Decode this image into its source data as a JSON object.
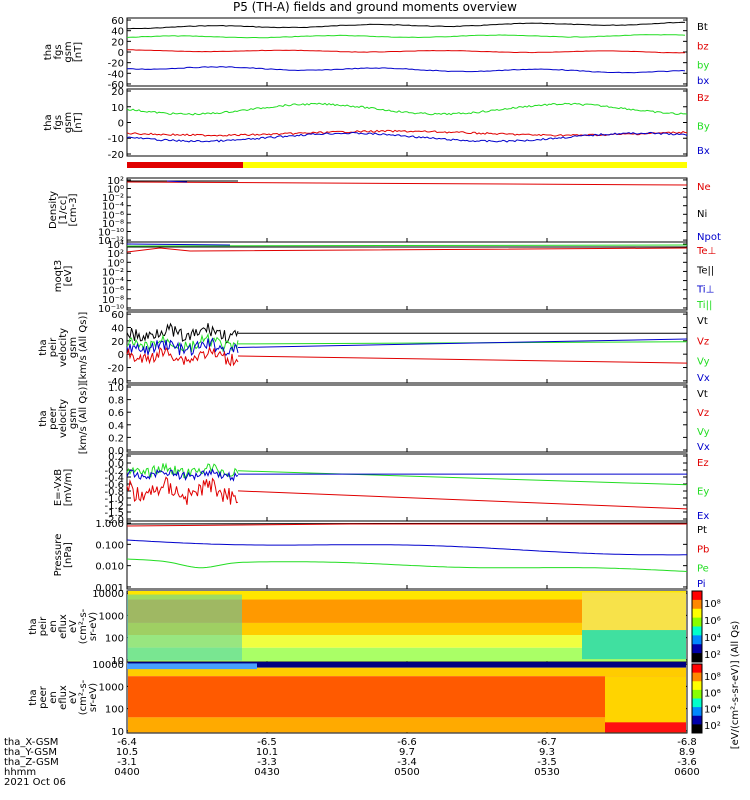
{
  "title": "P5 (TH-A) fields and ground moments overview",
  "colors": {
    "black": "#000000",
    "red": "#e00000",
    "green": "#22dd22",
    "blue": "#0000cc",
    "yellow": "#ffff00"
  },
  "panels": [
    {
      "id": "fgs_gsm",
      "ylabel": [
        "tha",
        "fgs",
        "gsm",
        "[nT]"
      ],
      "ticks": [
        "60",
        "40",
        "20",
        "0",
        "-20",
        "-40",
        "-60"
      ],
      "legend": [
        {
          "name": "Bt",
          "color": "black"
        },
        {
          "name": "bz",
          "color": "red"
        },
        {
          "name": "by",
          "color": "green"
        },
        {
          "name": "bx",
          "color": "blue"
        }
      ]
    },
    {
      "id": "fgs_gsm_zoom",
      "ylabel": [
        "tha",
        "fgs",
        "gsm",
        "[nT]"
      ],
      "ticks": [
        "20",
        "10",
        "0",
        "-10",
        "-20"
      ],
      "legend": [
        {
          "name": "Bz",
          "color": "red"
        },
        {
          "name": "By",
          "color": "green"
        },
        {
          "name": "Bx",
          "color": "blue"
        }
      ]
    },
    {
      "id": "density",
      "ylabel": [
        "Density",
        "[1/cc]",
        "[cm-3]"
      ],
      "ticks": [
        "10²",
        "10⁰",
        "10⁻²",
        "10⁻⁴",
        "10⁻⁶",
        "10⁻⁸",
        "10⁻¹⁰",
        "10⁻¹²"
      ],
      "legend": [
        {
          "name": "Ne",
          "color": "red"
        },
        {
          "name": "Ni",
          "color": "black"
        },
        {
          "name": "Npot",
          "color": "blue"
        }
      ]
    },
    {
      "id": "temp",
      "ylabel": [
        "moqt3",
        "[eV]"
      ],
      "ticks": [
        "10⁴",
        "10²",
        "10⁰",
        "10⁻²",
        "10⁻⁴",
        "10⁻⁶",
        "10⁻⁸",
        "10⁻¹⁰"
      ],
      "legend": [
        {
          "name": "Te⊥",
          "color": "red"
        },
        {
          "name": "Te||",
          "color": "black"
        },
        {
          "name": "Ti⊥",
          "color": "blue"
        },
        {
          "name": "Ti||",
          "color": "green"
        }
      ]
    },
    {
      "id": "peir_vel",
      "ylabel": [
        "tha",
        "peir",
        "velocity",
        "gsm",
        "[km/s (All Qs)]"
      ],
      "ticks": [
        "60",
        "40",
        "20",
        "0",
        "-20",
        "-40"
      ],
      "legend": [
        {
          "name": "Vt",
          "color": "black"
        },
        {
          "name": "Vz",
          "color": "red"
        },
        {
          "name": "Vy",
          "color": "green"
        },
        {
          "name": "Vx",
          "color": "blue"
        }
      ]
    },
    {
      "id": "peer_vel",
      "ylabel": [
        "tha",
        "peer",
        "velocity",
        "gsm",
        "[km/s (All Qs)]"
      ],
      "ticks": [
        "1.0",
        "0.8",
        "0.6",
        "0.4",
        "0.2",
        "0.0"
      ],
      "legend": [
        {
          "name": "Vt",
          "color": "black"
        },
        {
          "name": "Vz",
          "color": "red"
        },
        {
          "name": "Vy",
          "color": "green"
        },
        {
          "name": "Vx",
          "color": "blue"
        }
      ]
    },
    {
      "id": "efield",
      "ylabel": [
        "E=-VxB",
        "[mV/m]"
      ],
      "ticks": [
        "0.2",
        "0.0",
        "-0.2",
        "-0.4",
        "-0.6",
        "-0.8",
        "-1.0",
        "-1.2",
        "-1.5",
        "-2.0"
      ],
      "legend": [
        {
          "name": "Ez",
          "color": "red"
        },
        {
          "name": "Ey",
          "color": "green"
        },
        {
          "name": "Ex",
          "color": "blue"
        }
      ]
    },
    {
      "id": "pressure",
      "ylabel": [
        "Pressure",
        "[nPa]"
      ],
      "ticks": [
        "1.000",
        "0.100",
        "0.010",
        "0.001"
      ],
      "legend": [
        {
          "name": "Pt",
          "color": "black"
        },
        {
          "name": "Pb",
          "color": "red"
        },
        {
          "name": "Pe",
          "color": "green"
        },
        {
          "name": "Pi",
          "color": "blue"
        }
      ]
    },
    {
      "id": "peir_spec",
      "ylabel": [
        "tha",
        "peir",
        "en",
        "eflux",
        "eV",
        "(cm²-s-",
        "sr-eV)"
      ],
      "ticks": [
        "10000",
        "1000",
        "100",
        "10"
      ]
    },
    {
      "id": "peer_spec",
      "ylabel": [
        "tha",
        "peer",
        "en",
        "eflux",
        "eV",
        "(cm²-s-",
        "sr-eV)"
      ],
      "ticks": [
        "10000",
        "1000",
        "100",
        "10"
      ]
    }
  ],
  "colorbar": {
    "label": "[eV/(cm²-s-sr-eV)] (All Qs)",
    "ticks_top": [
      "10⁸",
      "10⁶",
      "10⁴",
      "10²"
    ],
    "ticks_bottom": [
      "10⁸",
      "10⁶",
      "10⁴",
      "10²"
    ]
  },
  "ephemeris": {
    "rows": [
      {
        "label": "tha_X-GSM",
        "values": [
          "-6.4",
          "-6.5",
          "-6.6",
          "-6.7",
          "-6.8"
        ]
      },
      {
        "label": "tha_Y-GSM",
        "values": [
          "10.5",
          "10.1",
          "9.7",
          "9.3",
          "8.9"
        ]
      },
      {
        "label": "tha_Z-GSM",
        "values": [
          "-3.1",
          "-3.3",
          "-3.4",
          "-3.5",
          "-3.6"
        ]
      },
      {
        "label": "hhmm",
        "values": [
          "0400",
          "0430",
          "0500",
          "0530",
          "0600"
        ]
      }
    ],
    "date": "2021 Oct 06"
  },
  "chart_data": {
    "type": "line",
    "title": "P5 (TH-A) fields and ground moments overview",
    "x": [
      "0400",
      "0430",
      "0500",
      "0530",
      "0600"
    ],
    "series": [
      {
        "name": "Bt",
        "approx_values": [
          45,
          50,
          52,
          50,
          52
        ]
      },
      {
        "name": "bz",
        "approx_values": [
          1,
          0,
          0,
          -1,
          -2
        ]
      },
      {
        "name": "by",
        "approx_values": [
          28,
          30,
          29,
          31,
          32
        ]
      },
      {
        "name": "bx",
        "approx_values": [
          -30,
          -28,
          -32,
          -35,
          -38
        ]
      }
    ]
  }
}
